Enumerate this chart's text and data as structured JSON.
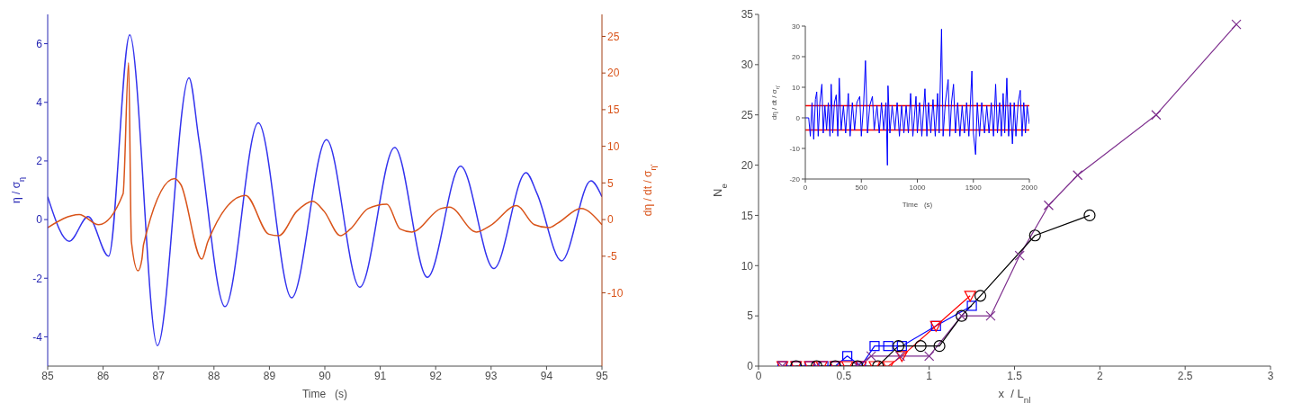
{
  "chart_data": [
    {
      "type": "line",
      "xlabel": "Time   (s)",
      "ylabel": "η / σ$_{η}$",
      "y2label": "dη / dt / σ$_{η'}$",
      "xlim": [
        85,
        95
      ],
      "xticks": [
        85,
        86,
        87,
        88,
        89,
        90,
        91,
        92,
        93,
        94,
        95
      ],
      "ylim": [
        -5,
        7
      ],
      "yticks": [
        -4,
        -2,
        0,
        2,
        4,
        6
      ],
      "y2lim": [
        -20,
        28
      ],
      "y2ticks": [
        -10,
        -5,
        0,
        5,
        10,
        15,
        20,
        25
      ],
      "series": [
        {
          "color": "#3333ee",
          "x": [
            85,
            85.39,
            85.73,
            86.1,
            86.48,
            86.98,
            87.55,
            87.73,
            88.2,
            88.8,
            89.4,
            90.03,
            90.63,
            91.26,
            91.85,
            92.45,
            93.05,
            93.63,
            93.83,
            94.27,
            94.8,
            95
          ],
          "values": [
            0.78,
            -0.74,
            0.1,
            -1.25,
            6.3,
            -4.3,
            4.84,
            2.7,
            -2.97,
            3.3,
            -2.67,
            2.73,
            -2.31,
            2.46,
            -1.97,
            1.82,
            -1.67,
            1.6,
            0.88,
            -1.41,
            1.32,
            0.78
          ]
        },
        {
          "color": "#d95319",
          "axis": "y2",
          "x": [
            85,
            85.57,
            85.92,
            86.36,
            86.46,
            86.51,
            86.63,
            86.7,
            86.73,
            87.29,
            87.4,
            87.78,
            87.89,
            88.57,
            88.99,
            89.17,
            89.49,
            89.78,
            89.99,
            90.28,
            90.46,
            90.78,
            91.12,
            91.36,
            91.57,
            92.09,
            92.25,
            92.73,
            92.99,
            93.46,
            93.78,
            94.04,
            94.2,
            94.62,
            95
          ],
          "values": [
            -1.1,
            0.7,
            -0.7,
            3.5,
            21.4,
            -3,
            -7,
            -5.4,
            -3.4,
            5.6,
            4.8,
            -5.4,
            -3,
            3.3,
            -2,
            -2.2,
            1.1,
            2.5,
            1.1,
            -2.2,
            -1.3,
            1.5,
            2.1,
            -1.3,
            -1.7,
            1.5,
            1.7,
            -1.7,
            -0.8,
            1.9,
            -0.7,
            -1.1,
            -0.5,
            1.5,
            -0.7
          ]
        }
      ]
    },
    {
      "type": "line",
      "xlabel": "x  / L$_{nl}$",
      "ylabel": "N$_{e}$",
      "xlim": [
        0,
        3
      ],
      "xticks": [
        0,
        0.5,
        1,
        1.5,
        2,
        2.5,
        3
      ],
      "ylim": [
        0,
        35
      ],
      "yticks": [
        0,
        5,
        10,
        15,
        20,
        25,
        30,
        35
      ],
      "series": [
        {
          "color": "#0000ff",
          "marker": "square",
          "x": [
            0.14,
            0.22,
            0.3,
            0.38,
            0.45,
            0.52,
            0.6,
            0.68,
            0.76,
            0.84,
            1.04,
            1.25
          ],
          "values": [
            0,
            0,
            0,
            0,
            0,
            1,
            0,
            2,
            2,
            2,
            4,
            6
          ]
        },
        {
          "color": "#ff0000",
          "marker": "triangle",
          "x": [
            0.14,
            0.22,
            0.3,
            0.37,
            0.45,
            0.52,
            0.6,
            0.68,
            0.76,
            0.84,
            1.04,
            1.24
          ],
          "values": [
            0,
            0,
            0,
            0,
            0,
            0,
            0,
            0,
            0,
            1,
            4,
            7
          ]
        },
        {
          "color": "#7e2f8e",
          "marker": "cross",
          "x": [
            0.14,
            0.34,
            0.58,
            0.66,
            0.83,
            1.0,
            1.19,
            1.36,
            1.53,
            1.7,
            1.87,
            2.33,
            2.8
          ],
          "values": [
            0,
            0,
            0,
            1,
            1,
            1,
            5,
            5,
            11,
            16,
            19,
            25,
            34
          ]
        },
        {
          "color": "#000000",
          "marker": "circle",
          "x": [
            0.22,
            0.34,
            0.45,
            0.58,
            0.7,
            0.82,
            0.95,
            1.06,
            1.19,
            1.3,
            1.62,
            1.94
          ],
          "values": [
            0,
            0,
            0,
            0,
            0,
            2,
            2,
            2,
            5,
            7,
            13,
            15
          ]
        }
      ]
    },
    {
      "type": "line",
      "xlabel": "Time   (s)",
      "ylabel": "dη / dt / σ$_{η'}$",
      "xlim": [
        0,
        2000
      ],
      "xticks": [
        0,
        500,
        1000,
        1500,
        2000
      ],
      "ylim": [
        -20,
        30
      ],
      "yticks": [
        -20,
        -10,
        0,
        10,
        20,
        30
      ],
      "ref_lines": [
        {
          "axis": "y",
          "value": 4,
          "color": "#ff0000"
        },
        {
          "axis": "y",
          "value": -4,
          "color": "#ff0000"
        }
      ],
      "x": [
        0,
        30,
        45,
        60,
        75,
        90,
        102,
        115,
        130,
        148,
        160,
        175,
        190,
        205,
        220,
        231,
        245,
        260,
        276,
        290,
        303,
        320,
        340,
        360,
        384,
        400,
        420,
        440,
        460,
        486,
        500,
        520,
        537,
        555,
        575,
        599,
        615,
        640,
        660,
        680,
        700,
        720,
        733,
        738,
        755,
        775,
        800,
        820,
        840,
        860,
        880,
        900,
        920,
        940,
        960,
        988,
        1000,
        1020,
        1040,
        1068,
        1085,
        1100,
        1120,
        1140,
        1160,
        1181,
        1195,
        1216,
        1230,
        1250,
        1275,
        1290,
        1305,
        1323,
        1340,
        1360,
        1380,
        1400,
        1420,
        1440,
        1460,
        1487,
        1500,
        1520,
        1535,
        1555,
        1575,
        1600,
        1620,
        1640,
        1660,
        1680,
        1699,
        1715,
        1735,
        1750,
        1766,
        1780,
        1799,
        1815,
        1830,
        1849,
        1865,
        1880,
        1900,
        1919,
        1935,
        1950,
        1965,
        1980,
        2000
      ],
      "series": [
        {
          "color": "#0000ff",
          "values": [
            0,
            0,
            -6,
            5,
            -7,
            6,
            8.5,
            -6,
            5,
            11,
            -5,
            4,
            -4,
            5,
            -6,
            11,
            -5,
            5,
            7.5,
            -6,
            13,
            -4,
            4,
            -5,
            8,
            -6,
            5,
            -4,
            5,
            7,
            -6,
            4,
            18.7,
            -5,
            4,
            7,
            -4,
            4,
            -5,
            5,
            -4,
            5,
            -15.5,
            10.5,
            -5,
            4,
            -4,
            5,
            -6,
            4,
            -5,
            4,
            -5,
            8,
            -6,
            7,
            -5,
            5,
            -6,
            9.5,
            -6,
            5,
            -5,
            6,
            -6,
            8,
            -5,
            29,
            -6,
            5,
            12.5,
            -6,
            5,
            11,
            -5,
            5,
            -6,
            4,
            -5,
            5,
            -6,
            15.3,
            -5,
            -12,
            5,
            -6,
            5,
            -5,
            4,
            -5,
            5,
            -6,
            11,
            -5,
            5,
            -6,
            8,
            -5,
            13,
            -6,
            5,
            -8.5,
            5,
            -6,
            5,
            9,
            -6,
            5,
            -5,
            4,
            -2
          ]
        }
      ]
    }
  ]
}
